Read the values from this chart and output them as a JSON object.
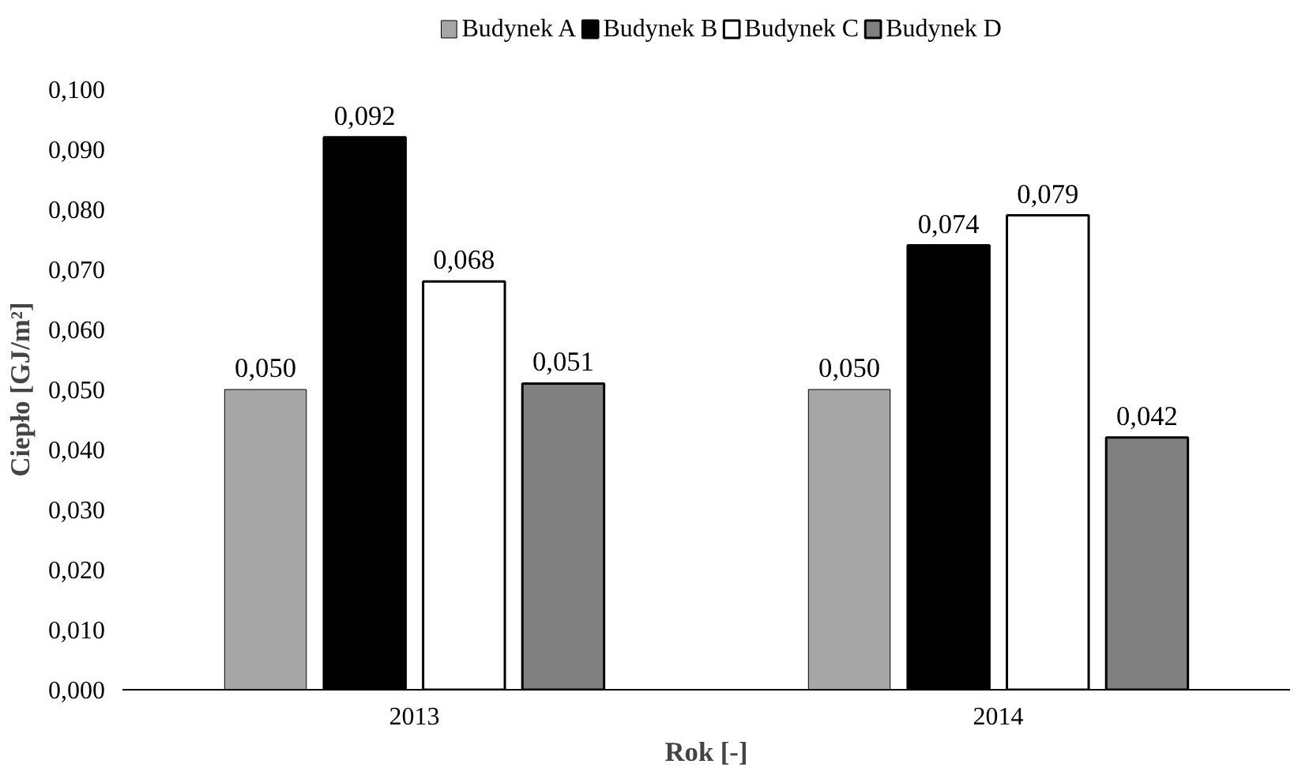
{
  "chart_data": {
    "type": "bar",
    "xlabel": "Rok [-]",
    "ylabel": "Ciepło [GJ/m²]",
    "categories": [
      "2013",
      "2014"
    ],
    "series": [
      {
        "name": "Budynek A",
        "color": "#a6a6a6",
        "values": [
          0.05,
          0.05
        ],
        "value_labels": [
          "0,050",
          "0,050"
        ]
      },
      {
        "name": "Budynek B",
        "color": "#000000",
        "values": [
          0.092,
          0.074
        ],
        "value_labels": [
          "0,092",
          "0,074"
        ]
      },
      {
        "name": "Budynek C",
        "color": "#ffffff",
        "values": [
          0.068,
          0.079
        ],
        "value_labels": [
          "0,068",
          "0,079"
        ]
      },
      {
        "name": "Budynek D",
        "color": "#808080",
        "values": [
          0.051,
          0.042
        ],
        "value_labels": [
          "0,051",
          "0,042"
        ]
      }
    ],
    "ylim": [
      0,
      0.1
    ],
    "yticks": [
      {
        "value": 0,
        "label": "0,000"
      },
      {
        "value": 0.01,
        "label": "0,010"
      },
      {
        "value": 0.02,
        "label": "0,020"
      },
      {
        "value": 0.03,
        "label": "0,030"
      },
      {
        "value": 0.04,
        "label": "0,040"
      },
      {
        "value": 0.05,
        "label": "0,050"
      },
      {
        "value": 0.06,
        "label": "0,060"
      },
      {
        "value": 0.07,
        "label": "0,070"
      },
      {
        "value": 0.08,
        "label": "0,080"
      },
      {
        "value": 0.09,
        "label": "0,090"
      },
      {
        "value": 0.1,
        "label": "0,100"
      }
    ],
    "grid": false,
    "legend": "top"
  }
}
